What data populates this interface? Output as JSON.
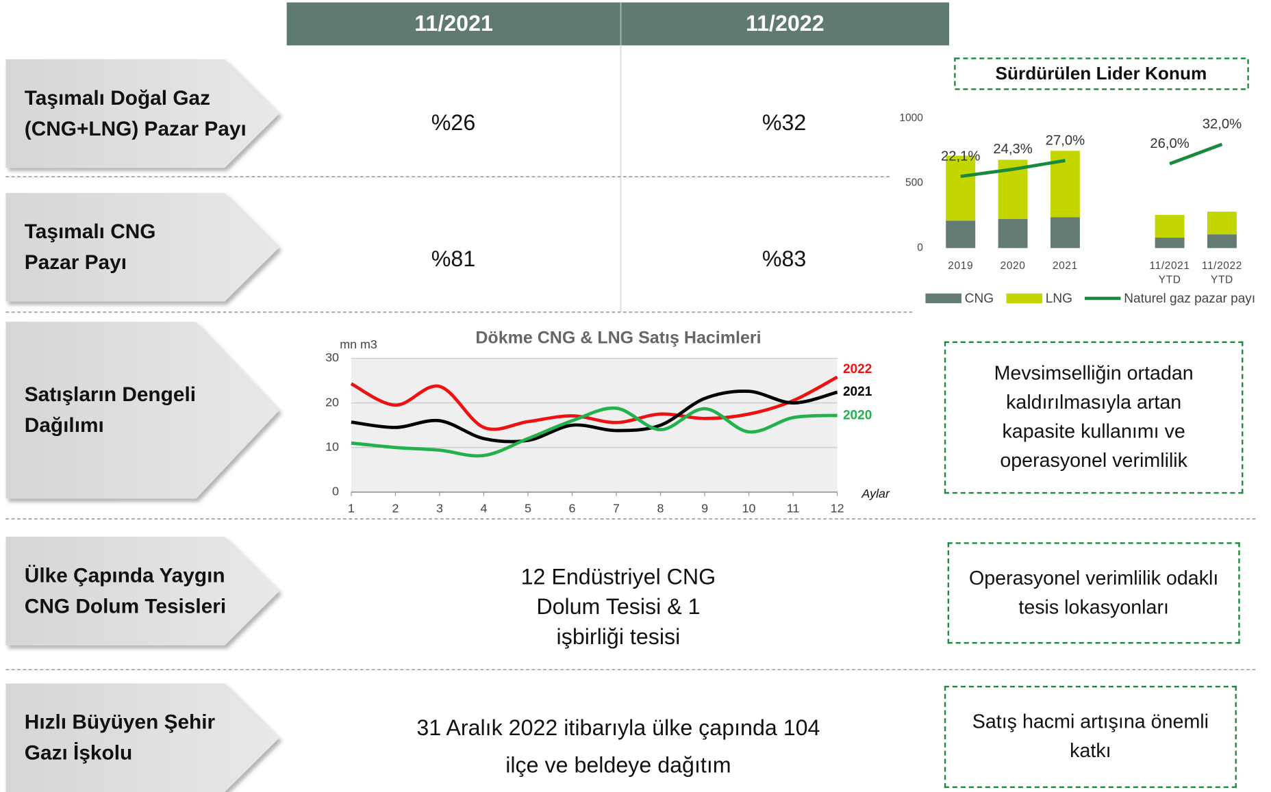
{
  "table": {
    "headers": [
      "11/2021",
      "11/2022"
    ],
    "rows": [
      {
        "label": "Taşımalı Doğal Gaz (CNG+LNG) Pazar Payı",
        "cells": [
          "%26",
          "%32"
        ]
      },
      {
        "label": "Taşımalı CNG Pazar Payı",
        "cells": [
          "%81",
          "%83"
        ]
      },
      {
        "label": "Satışların Dengeli Dağılımı"
      },
      {
        "label": "Ülke Çapında Yaygın CNG Dolum Tesisleri",
        "text": "12 Endüstriyel CNG Dolum Tesisi & 1 işbirliği tesisi"
      },
      {
        "label": "Hızlı Büyüyen Şehir Gazı İşkolu",
        "text": "31 Aralık 2022 itibarıyla ülke çapında 104 ilçe ve beldeye dağıtım"
      }
    ]
  },
  "callouts": [
    "Mevsimselliğin ortadan kaldırılmasıyla artan kapasite kullanımı ve operasyonel verimlilik",
    "Operasyonel verimlilik odaklı tesis lokasyonları",
    "Satış hacmi artışına önemli katkı"
  ],
  "chart_data": [
    {
      "type": "bar",
      "title": "Sürdürülen Lider Konum",
      "stacked": true,
      "categories": [
        "2019",
        "2020",
        "2021",
        null,
        "11/2021 YTD",
        "11/2022 YTD"
      ],
      "ylim": [
        0,
        1000
      ],
      "yticks": [
        0,
        500,
        1000
      ],
      "y2lim": [
        0,
        40
      ],
      "legend": "bottom",
      "series": [
        {
          "name": "CNG",
          "color": "#647b74",
          "values": [
            212,
            225,
            237,
            null,
            81,
            106
          ]
        },
        {
          "name": "LNG",
          "color": "#c3d600",
          "values": [
            500,
            456,
            513,
            null,
            175,
            175
          ]
        },
        {
          "name": "Naturel gaz pazar payı",
          "type": "line",
          "axis": "y2",
          "color": "#188a3e",
          "values": [
            22.1,
            24.3,
            27.0,
            null,
            26.0,
            32.0
          ],
          "value_labels": [
            "22,1%",
            "24,3%",
            "27,0%",
            null,
            "26,0%",
            "32,0%"
          ]
        }
      ]
    },
    {
      "type": "line",
      "title": "Dökme CNG & LNG Satış Hacimleri",
      "y_label": "mn m3",
      "x_label": "Aylar",
      "x": [
        1,
        2,
        3,
        4,
        5,
        6,
        7,
        8,
        9,
        10,
        11,
        12
      ],
      "xlim": [
        1,
        12
      ],
      "xticks": [
        1,
        2,
        3,
        4,
        5,
        6,
        7,
        8,
        9,
        10,
        11,
        12
      ],
      "ylim": [
        0,
        30
      ],
      "yticks": [
        0,
        10,
        20,
        30
      ],
      "grid": true,
      "series": [
        {
          "name": "2022",
          "color": "#ee1111",
          "values": [
            24.3,
            19.5,
            23.7,
            14.5,
            15.8,
            17.1,
            15.6,
            17.5,
            16.5,
            17.5,
            20.5,
            25.8
          ]
        },
        {
          "name": "2021",
          "color": "#000000",
          "values": [
            15.7,
            14.5,
            16.0,
            12.0,
            11.6,
            15.0,
            13.8,
            15.0,
            21.0,
            22.6,
            20.0,
            22.4
          ]
        },
        {
          "name": "2020",
          "color": "#22b14c",
          "values": [
            11.0,
            10.0,
            9.4,
            8.2,
            12.0,
            16.0,
            18.8,
            14.0,
            18.7,
            13.5,
            16.7,
            17.2
          ]
        }
      ]
    }
  ]
}
